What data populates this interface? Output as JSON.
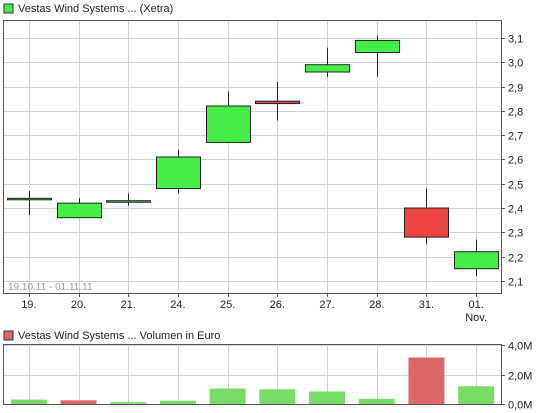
{
  "colors": {
    "up": "#44ee44",
    "down": "#ee4444",
    "volume_up": "#77dd66",
    "volume_down": "#dd6666",
    "grid": "#d0d0d0",
    "axis": "#555555"
  },
  "price_legend": {
    "label": "Vestas Wind Systems ... (Xetra)",
    "color": "#44ee44"
  },
  "range_label": "19.10.11 - 01.11.11",
  "volume_legend": {
    "label": "Vestas Wind Systems ... Volumen in Euro",
    "color": "#dd6666"
  },
  "chart_data": [
    {
      "type": "candlestick",
      "title": "Vestas Wind Systems ... (Xetra)",
      "categories": [
        "19.",
        "20.",
        "21.",
        "24.",
        "25.",
        "26.",
        "27.",
        "28.",
        "31.",
        "01."
      ],
      "category_sublabels": [
        "",
        "",
        "",
        "",
        "",
        "",
        "",
        "",
        "",
        "Nov."
      ],
      "open": [
        2.44,
        2.36,
        2.43,
        2.48,
        2.67,
        2.84,
        2.96,
        3.04,
        2.4,
        2.15
      ],
      "high": [
        2.47,
        2.44,
        2.46,
        2.64,
        2.88,
        2.92,
        3.06,
        3.11,
        2.48,
        2.27
      ],
      "low": [
        2.37,
        2.36,
        2.41,
        2.46,
        2.67,
        2.76,
        2.94,
        2.94,
        2.25,
        2.12
      ],
      "close": [
        2.44,
        2.42,
        2.43,
        2.61,
        2.82,
        2.83,
        2.99,
        3.09,
        2.28,
        2.22
      ],
      "yticks": [
        2.1,
        2.2,
        2.3,
        2.4,
        2.5,
        2.6,
        2.7,
        2.8,
        2.9,
        3.0,
        3.1
      ],
      "ytick_labels": [
        "2,1",
        "2,2",
        "2,3",
        "2,4",
        "2,5",
        "2,6",
        "2,7",
        "2,8",
        "2,9",
        "3,0",
        "3,1"
      ],
      "ylim": [
        2.05,
        3.17
      ],
      "y_axis": "right",
      "grid": true
    },
    {
      "type": "bar",
      "title": "Vestas Wind Systems ... Volumen in Euro",
      "categories": [
        "19.",
        "20.",
        "21.",
        "24.",
        "25.",
        "26.",
        "27.",
        "28.",
        "31.",
        "01."
      ],
      "values": [
        0.3,
        0.25,
        0.12,
        0.22,
        1.05,
        1.0,
        0.85,
        0.35,
        3.15,
        1.2
      ],
      "up": [
        true,
        false,
        true,
        true,
        true,
        true,
        true,
        true,
        false,
        true
      ],
      "unit": "M",
      "yticks": [
        0,
        2,
        4
      ],
      "ytick_labels": [
        "0,0M",
        "2,0M",
        "4,0M"
      ],
      "ylim": [
        0,
        4.0
      ],
      "y_axis": "right",
      "grid": true
    }
  ]
}
